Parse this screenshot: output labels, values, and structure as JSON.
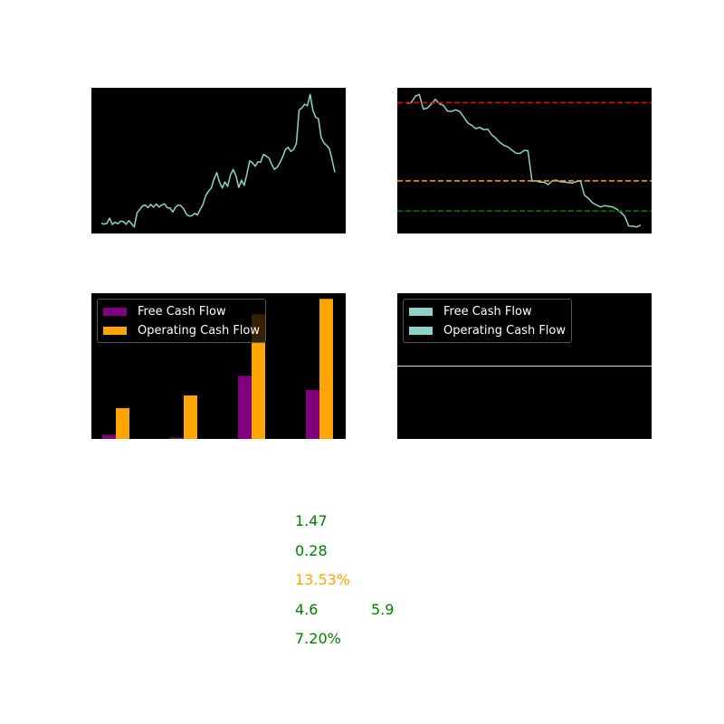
{
  "colors": {
    "background": "#000000",
    "price_line": "#8dd3c7",
    "level_red": "#ff0000",
    "level_orange": "#ffa500",
    "level_green": "#008000",
    "fcf_bar": "#800080",
    "ocf_bar": "#ffa500",
    "positive_text": "#008000",
    "warning_text": "#ffa500"
  },
  "chart_data": [
    {
      "type": "line",
      "grid": false,
      "series": [
        {
          "values": [
            1.0,
            0.6,
            0.9,
            3.4,
            0.4,
            1.5,
            0.7,
            2.0,
            1.8,
            0.5,
            2.3,
            0.8,
            -0.7,
            6.0,
            7.5,
            9.2,
            9.6,
            8.4,
            9.9,
            8.6,
            10.1,
            8.7,
            9.6,
            10.2,
            8.3,
            8.2,
            6.3,
            8.6,
            9.7,
            9.2,
            7.7,
            5.2,
            4.4,
            4.6,
            5.7,
            4.9,
            7.6,
            9.9,
            14.0,
            16.2,
            17.6,
            21.8,
            24.9,
            20.5,
            17.7,
            20.5,
            18.4,
            23.9,
            26.4,
            23.5,
            17.9,
            21.3,
            18.9,
            24.4,
            30.5,
            29.6,
            27.9,
            30.1,
            29.9,
            33.5,
            32.8,
            31.8,
            28.9,
            26.4,
            27.5,
            29.6,
            32.3,
            35.9,
            36.9,
            34.9,
            36.0,
            38.7,
            54.6,
            55.5,
            57.3,
            56.5,
            61.9,
            54.4,
            51.1,
            50.5,
            41.7,
            38.9,
            37.8,
            36.3,
            31.0,
            25.1
          ]
        }
      ]
    },
    {
      "type": "line",
      "grid": false,
      "series": [
        {
          "values": [
            83.7,
            84.0,
            86.9,
            87.7,
            81.1,
            81.6,
            83.4,
            85.5,
            83.5,
            82.8,
            80.2,
            80.1,
            80.8,
            80.1,
            77.7,
            75.0,
            73.9,
            72.4,
            72.9,
            71.9,
            72.1,
            69.6,
            68.1,
            66.2,
            64.9,
            64.2,
            62.7,
            61.4,
            61.3,
            62.6,
            62.5,
            48.8,
            49.0,
            48.4,
            48.4,
            47.3,
            49.0,
            49.3,
            48.6,
            48.5,
            48.2,
            48.0,
            48.7,
            49.1,
            42.6,
            41.2,
            39.2,
            38.2,
            37.3,
            37.9,
            37.6,
            37.3,
            36.4,
            34.9,
            33.2,
            28.8,
            28.7,
            28.4,
            29.2
          ]
        }
      ],
      "reference_lines": [
        {
          "color": "red",
          "value": 84.0,
          "style": "dashed"
        },
        {
          "color": "orange",
          "value": 49.0,
          "style": "dashed"
        },
        {
          "color": "green",
          "value": 35.5,
          "style": "dashed"
        }
      ]
    },
    {
      "type": "bar",
      "grid": false,
      "legend_position": "upper-left",
      "categories": [
        "",
        "",
        "",
        ""
      ],
      "series": [
        {
          "name": "Free Cash Flow",
          "values": [
            0.3,
            0.1,
            4.5,
            3.5
          ]
        },
        {
          "name": "Operating Cash Flow",
          "values": [
            2.2,
            3.1,
            8.9,
            10.0
          ]
        }
      ],
      "ylim": [
        0,
        10.4
      ]
    },
    {
      "type": "line",
      "grid": false,
      "legend_position": "upper-left",
      "series": [
        {
          "name": "Free Cash Flow",
          "values": [
            0.5,
            0.5
          ]
        },
        {
          "name": "Operating Cash Flow",
          "values": [
            0.5,
            0.5
          ]
        }
      ],
      "ylim": [
        0,
        1
      ]
    }
  ],
  "metrics": [
    {
      "value": "1.47",
      "status": "good"
    },
    {
      "value": "0.28",
      "status": "good"
    },
    {
      "value": "13.53%",
      "status": "warning"
    },
    {
      "value": "4.6",
      "status": "good"
    },
    {
      "value": "5.9",
      "status": "good"
    },
    {
      "value": "7.20%",
      "status": "good"
    }
  ]
}
